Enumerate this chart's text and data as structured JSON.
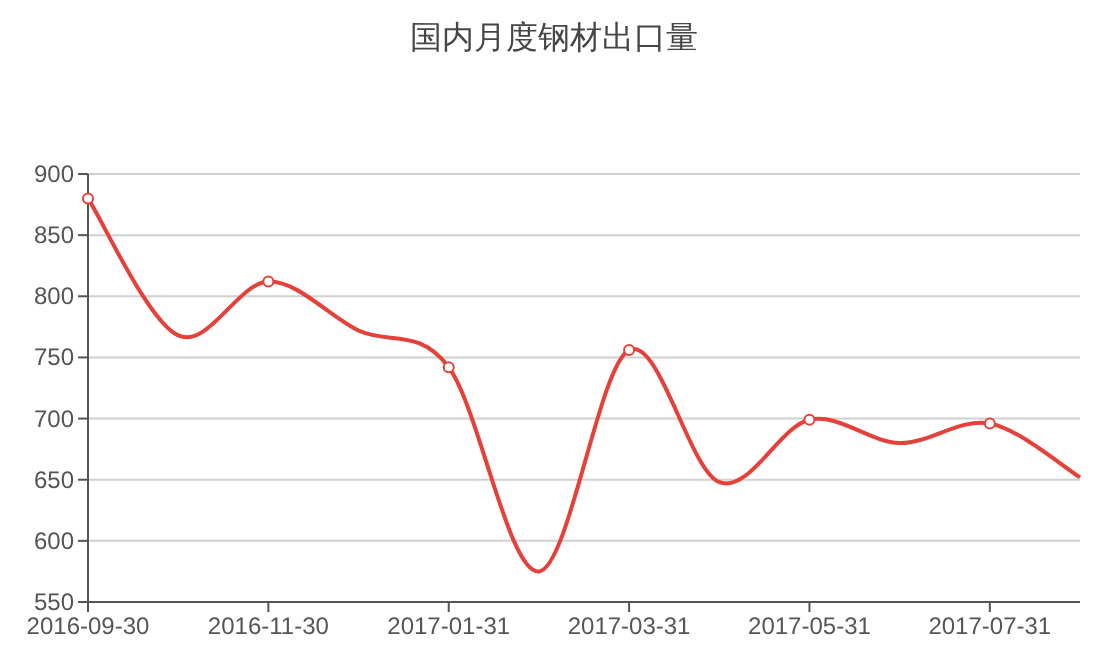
{
  "chart_data": {
    "type": "line",
    "title": "国内月度钢材出口量",
    "categories": [
      "2016-09-30",
      null,
      "2016-11-30",
      null,
      "2017-01-31",
      null,
      "2017-03-31",
      null,
      "2017-05-31",
      null,
      "2017-07-31",
      null
    ],
    "series": [
      {
        "color": "#e5413a",
        "values": [
          880,
          768,
          812,
          772,
          742,
          575,
          756,
          648,
          699,
          680,
          696,
          652
        ]
      }
    ],
    "ylim": [
      550,
      900
    ],
    "yticks": [
      550,
      600,
      650,
      700,
      750,
      800,
      850,
      900
    ],
    "grid": "y",
    "marker": "circle",
    "line_style": "solid"
  }
}
